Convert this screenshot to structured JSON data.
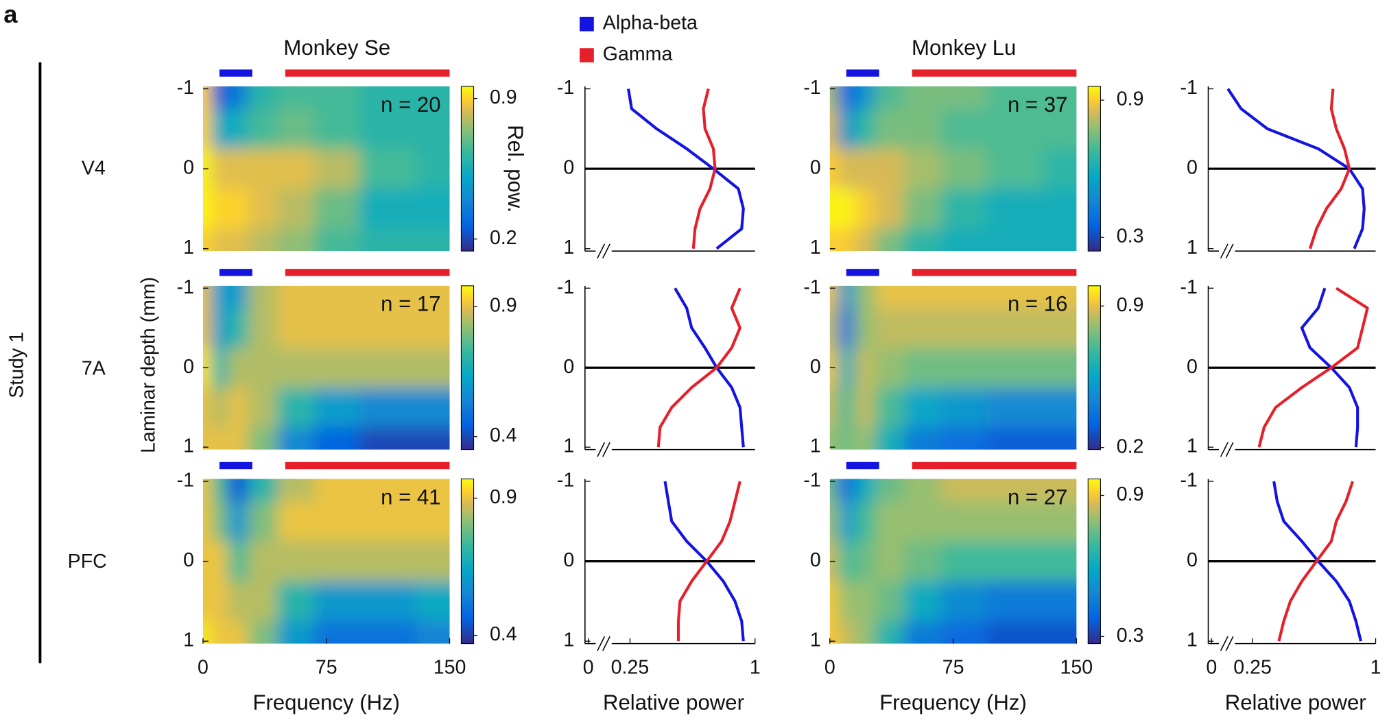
{
  "panel_label": "a",
  "study_label": "Study 1",
  "y_label": "Laminar depth (mm)",
  "rows": [
    "V4",
    "7A",
    "PFC"
  ],
  "bands": [
    {
      "name": "Alpha-beta",
      "color": "#1414e0",
      "range": [
        10,
        30
      ]
    },
    {
      "name": "Gamma",
      "color": "#e6202a",
      "range": [
        50,
        150
      ]
    }
  ],
  "chart_data": [
    {
      "type": "heatmap",
      "title": "Monkey Se",
      "annotation": "n = 20",
      "colorbar_label": "Rel. pow.",
      "x": [
        0,
        10,
        20,
        35,
        55,
        80,
        110,
        150
      ],
      "y": [
        -1,
        -0.5,
        0,
        0.5,
        1
      ],
      "z": [
        [
          0.9,
          0.25,
          0.35,
          0.6,
          0.65,
          0.65,
          0.6,
          0.6
        ],
        [
          0.9,
          0.5,
          0.55,
          0.65,
          0.7,
          0.65,
          0.6,
          0.6
        ],
        [
          0.95,
          0.85,
          0.85,
          0.85,
          0.85,
          0.8,
          0.65,
          0.6
        ],
        [
          0.95,
          0.9,
          0.9,
          0.85,
          0.8,
          0.7,
          0.55,
          0.55
        ],
        [
          0.9,
          0.85,
          0.85,
          0.8,
          0.75,
          0.65,
          0.6,
          0.6
        ]
      ],
      "xlim": [
        0,
        150
      ],
      "ylim": [
        -1.03,
        1.03
      ],
      "yticks": [
        -1,
        0,
        1
      ],
      "clim": [
        0.14,
        0.96
      ],
      "cticks": [
        0.2,
        0.9
      ]
    },
    {
      "type": "line",
      "depths": [
        -1,
        -0.75,
        -0.5,
        -0.25,
        0,
        0.25,
        0.5,
        0.75,
        1
      ],
      "series": [
        {
          "color": "#1414e0",
          "values": [
            0.24,
            0.26,
            0.41,
            0.59,
            0.75,
            0.9,
            0.93,
            0.92,
            0.77
          ]
        },
        {
          "color": "#e6202a",
          "values": [
            0.72,
            0.69,
            0.7,
            0.75,
            0.76,
            0.73,
            0.67,
            0.64,
            0.63
          ]
        }
      ],
      "xlim": [
        -0.02,
        1
      ],
      "ylim": [
        -1.03,
        1.03
      ],
      "yticks": [
        -1,
        0,
        1
      ]
    },
    {
      "type": "heatmap",
      "title": "Monkey Lu",
      "annotation": "n = 37",
      "x": [
        0,
        10,
        20,
        35,
        55,
        80,
        110,
        150
      ],
      "y": [
        -1,
        -0.5,
        0,
        0.5,
        1
      ],
      "z": [
        [
          0.8,
          0.35,
          0.5,
          0.7,
          0.75,
          0.75,
          0.7,
          0.7
        ],
        [
          0.85,
          0.5,
          0.65,
          0.75,
          0.75,
          0.7,
          0.7,
          0.7
        ],
        [
          0.9,
          0.85,
          0.85,
          0.85,
          0.8,
          0.75,
          0.7,
          0.65
        ],
        [
          0.95,
          0.95,
          0.9,
          0.85,
          0.75,
          0.65,
          0.6,
          0.6
        ],
        [
          0.9,
          0.9,
          0.85,
          0.75,
          0.65,
          0.6,
          0.6,
          0.6
        ]
      ],
      "xlim": [
        0,
        150
      ],
      "ylim": [
        -1.03,
        1.03
      ],
      "yticks": [
        -1,
        0,
        1
      ],
      "clim": [
        0.24,
        0.96
      ],
      "cticks": [
        0.3,
        0.9
      ]
    },
    {
      "type": "line",
      "depths": [
        -1,
        -0.75,
        -0.5,
        -0.25,
        0,
        0.25,
        0.5,
        0.75,
        1
      ],
      "series": [
        {
          "color": "#1414e0",
          "values": [
            0.1,
            0.18,
            0.34,
            0.65,
            0.84,
            0.92,
            0.93,
            0.92,
            0.87
          ]
        },
        {
          "color": "#e6202a",
          "values": [
            0.74,
            0.73,
            0.76,
            0.81,
            0.84,
            0.79,
            0.7,
            0.64,
            0.6
          ]
        }
      ],
      "xlim": [
        -0.02,
        1
      ],
      "ylim": [
        -1.03,
        1.03
      ],
      "yticks": [
        -1,
        0,
        1
      ]
    },
    {
      "type": "heatmap",
      "annotation": "n = 17",
      "x": [
        0,
        10,
        20,
        35,
        55,
        80,
        110,
        150
      ],
      "y": [
        -1,
        -0.5,
        0,
        0.5,
        1
      ],
      "z": [
        [
          0.9,
          0.6,
          0.6,
          0.85,
          0.9,
          0.9,
          0.9,
          0.9
        ],
        [
          0.9,
          0.6,
          0.7,
          0.85,
          0.9,
          0.9,
          0.9,
          0.9
        ],
        [
          0.95,
          0.7,
          0.85,
          0.85,
          0.85,
          0.85,
          0.85,
          0.85
        ],
        [
          0.9,
          0.85,
          0.9,
          0.85,
          0.7,
          0.6,
          0.55,
          0.55
        ],
        [
          0.9,
          0.9,
          0.9,
          0.8,
          0.55,
          0.45,
          0.4,
          0.4
        ]
      ],
      "xlim": [
        0,
        150
      ],
      "ylim": [
        -1.03,
        1.03
      ],
      "yticks": [
        -1,
        0,
        1
      ],
      "clim": [
        0.35,
        0.98
      ],
      "cticks": [
        0.4,
        0.9
      ]
    },
    {
      "type": "line",
      "depths": [
        -1,
        -0.75,
        -0.5,
        -0.25,
        0,
        0.25,
        0.5,
        0.75,
        1
      ],
      "series": [
        {
          "color": "#1414e0",
          "values": [
            0.52,
            0.59,
            0.62,
            0.7,
            0.77,
            0.86,
            0.91,
            0.92,
            0.93
          ]
        },
        {
          "color": "#e6202a",
          "values": [
            0.91,
            0.86,
            0.91,
            0.86,
            0.77,
            0.62,
            0.5,
            0.43,
            0.42
          ]
        }
      ],
      "xlim": [
        -0.02,
        1
      ],
      "ylim": [
        -1.03,
        1.03
      ],
      "yticks": [
        -1,
        0,
        1
      ]
    },
    {
      "type": "heatmap",
      "annotation": "n = 16",
      "x": [
        0,
        10,
        20,
        35,
        55,
        80,
        110,
        150
      ],
      "y": [
        -1,
        -0.5,
        0,
        0.5,
        1
      ],
      "z": [
        [
          0.9,
          0.5,
          0.8,
          0.9,
          0.9,
          0.9,
          0.9,
          0.9
        ],
        [
          0.85,
          0.4,
          0.8,
          0.85,
          0.85,
          0.85,
          0.85,
          0.85
        ],
        [
          0.9,
          0.6,
          0.85,
          0.8,
          0.75,
          0.75,
          0.75,
          0.75
        ],
        [
          0.85,
          0.7,
          0.85,
          0.7,
          0.55,
          0.5,
          0.45,
          0.45
        ],
        [
          0.8,
          0.75,
          0.8,
          0.6,
          0.4,
          0.35,
          0.3,
          0.3
        ]
      ],
      "xlim": [
        0,
        150
      ],
      "ylim": [
        -1.03,
        1.03
      ],
      "yticks": [
        -1,
        0,
        1
      ],
      "clim": [
        0.19,
        1.0
      ],
      "cticks": [
        0.2,
        0.9
      ]
    },
    {
      "type": "line",
      "depths": [
        -1,
        -0.75,
        -0.5,
        -0.25,
        0,
        0.25,
        0.5,
        0.75,
        1
      ],
      "series": [
        {
          "color": "#1414e0",
          "values": [
            0.69,
            0.65,
            0.55,
            0.6,
            0.73,
            0.84,
            0.89,
            0.89,
            0.88
          ]
        },
        {
          "color": "#e6202a",
          "values": [
            0.76,
            0.95,
            0.92,
            0.89,
            0.73,
            0.55,
            0.39,
            0.32,
            0.29
          ]
        }
      ],
      "xlim": [
        -0.02,
        1
      ],
      "ylim": [
        -1.03,
        1.03
      ],
      "yticks": [
        -1,
        0,
        1
      ]
    },
    {
      "type": "heatmap",
      "annotation": "n = 41",
      "x": [
        0,
        10,
        20,
        35,
        55,
        80,
        110,
        150
      ],
      "y": [
        -1,
        -0.5,
        0,
        0.5,
        1
      ],
      "z": [
        [
          0.9,
          0.75,
          0.45,
          0.7,
          0.85,
          0.9,
          0.9,
          0.9
        ],
        [
          0.9,
          0.8,
          0.6,
          0.8,
          0.9,
          0.9,
          0.9,
          0.9
        ],
        [
          0.9,
          0.9,
          0.75,
          0.85,
          0.85,
          0.85,
          0.85,
          0.85
        ],
        [
          0.9,
          0.9,
          0.85,
          0.85,
          0.7,
          0.6,
          0.6,
          0.65
        ],
        [
          0.95,
          0.9,
          0.9,
          0.8,
          0.6,
          0.5,
          0.5,
          0.55
        ]
      ],
      "xlim": [
        0,
        150
      ],
      "ylim": [
        -1.03,
        1.03
      ],
      "yticks": [
        -1,
        0,
        1
      ],
      "clim": [
        0.37,
        0.97
      ],
      "cticks": [
        0.4,
        0.9
      ],
      "xticks": [
        0,
        75,
        150
      ],
      "xlabel": "Frequency (Hz)"
    },
    {
      "type": "line",
      "depths": [
        -1,
        -0.75,
        -0.5,
        -0.25,
        0,
        0.25,
        0.5,
        0.75,
        1
      ],
      "series": [
        {
          "color": "#1414e0",
          "values": [
            0.46,
            0.48,
            0.5,
            0.59,
            0.71,
            0.81,
            0.88,
            0.92,
            0.93
          ]
        },
        {
          "color": "#e6202a",
          "values": [
            0.91,
            0.88,
            0.85,
            0.8,
            0.71,
            0.62,
            0.55,
            0.54,
            0.54
          ]
        }
      ],
      "xlim": [
        -0.02,
        1
      ],
      "ylim": [
        -1.03,
        1.03
      ],
      "yticks": [
        -1,
        0,
        1
      ],
      "xticks": [
        0,
        0.25,
        1
      ],
      "xlabel": "Relative power"
    },
    {
      "type": "heatmap",
      "annotation": "n = 27",
      "x": [
        0,
        10,
        20,
        35,
        55,
        80,
        110,
        150
      ],
      "y": [
        -1,
        -0.5,
        0,
        0.5,
        1
      ],
      "z": [
        [
          0.75,
          0.4,
          0.6,
          0.75,
          0.8,
          0.85,
          0.85,
          0.85
        ],
        [
          0.8,
          0.55,
          0.7,
          0.8,
          0.8,
          0.8,
          0.8,
          0.8
        ],
        [
          0.85,
          0.7,
          0.75,
          0.8,
          0.75,
          0.7,
          0.7,
          0.7
        ],
        [
          0.9,
          0.8,
          0.8,
          0.75,
          0.6,
          0.5,
          0.45,
          0.45
        ],
        [
          0.9,
          0.85,
          0.8,
          0.65,
          0.45,
          0.4,
          0.35,
          0.35
        ]
      ],
      "xlim": [
        0,
        150
      ],
      "ylim": [
        -1.03,
        1.03
      ],
      "yticks": [
        -1,
        0,
        1
      ],
      "clim": [
        0.27,
        0.97
      ],
      "cticks": [
        0.3,
        0.9
      ],
      "xticks": [
        0,
        75,
        150
      ],
      "xlabel": "Frequency (Hz)"
    },
    {
      "type": "line",
      "depths": [
        -1,
        -0.75,
        -0.5,
        -0.25,
        0,
        0.25,
        0.5,
        0.75,
        1
      ],
      "series": [
        {
          "color": "#1414e0",
          "values": [
            0.38,
            0.4,
            0.44,
            0.55,
            0.65,
            0.76,
            0.84,
            0.88,
            0.91
          ]
        },
        {
          "color": "#e6202a",
          "values": [
            0.86,
            0.82,
            0.76,
            0.73,
            0.64,
            0.55,
            0.48,
            0.44,
            0.41
          ]
        }
      ],
      "xlim": [
        -0.02,
        1
      ],
      "ylim": [
        -1.03,
        1.03
      ],
      "yticks": [
        -1,
        0,
        1
      ],
      "xticks": [
        0,
        0.25,
        1
      ],
      "xlabel": "Relative power"
    }
  ]
}
